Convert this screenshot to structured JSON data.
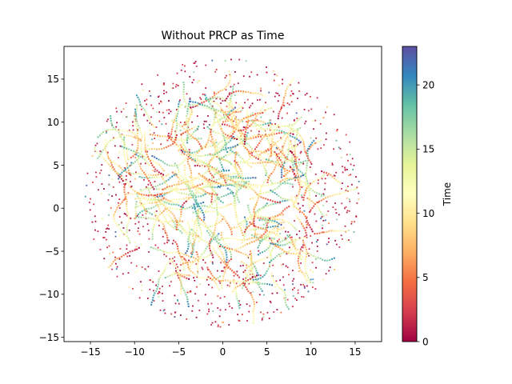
{
  "chart_data": {
    "type": "scatter",
    "title": "Without PRCP as Time",
    "xlabel": "",
    "ylabel": "",
    "xlim": [
      -18,
      18
    ],
    "ylim": [
      -15.5,
      18.8
    ],
    "x_ticks": [
      -15,
      -10,
      -5,
      0,
      5,
      10,
      15
    ],
    "y_ticks": [
      -15,
      -10,
      -5,
      0,
      5,
      10,
      15
    ],
    "grid": false,
    "legend": "none",
    "colormap": "Spectral",
    "colorbar": {
      "label": "Time",
      "range": [
        0,
        23
      ],
      "ticks": [
        0,
        5,
        10,
        15,
        20
      ]
    },
    "series": [
      {
        "values": [],
        "x_min": -16.5,
        "x_max": 16.5,
        "y_min": -14,
        "y_max": 17.5,
        "shape": "roughly circular point cloud centered near (0, 1.8) with radius about 16",
        "inner_pattern": "dense short curved trajectories coloured through the full Time range",
        "outer_pattern": "sparse isolated points, mostly low Time (red)"
      }
    ]
  },
  "colors": {
    "axes_edge": "#000000",
    "background": "#ffffff",
    "cmap_stops": [
      "#9e0142",
      "#d53e4f",
      "#f46d43",
      "#fdae61",
      "#fee08b",
      "#ffffbf",
      "#e6f598",
      "#abdda4",
      "#66c2a5",
      "#3288bd",
      "#5e4fa2"
    ]
  }
}
